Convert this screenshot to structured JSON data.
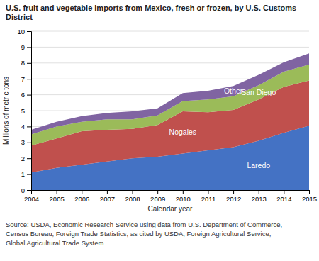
{
  "chart_data": {
    "type": "area",
    "stacked": true,
    "title": "U.S. fruit and vegetable imports from Mexico, fresh or frozen, by U.S. Customs District",
    "xlabel": "Calendar year",
    "ylabel": "Millions of metric tons",
    "x": [
      2004,
      2005,
      2006,
      2007,
      2008,
      2009,
      2010,
      2011,
      2012,
      2013,
      2014,
      2015
    ],
    "xlim": [
      2004,
      2015
    ],
    "xticks": [
      2004,
      2005,
      2006,
      2007,
      2008,
      2009,
      2010,
      2011,
      2012,
      2013,
      2014,
      2015
    ],
    "ylim": [
      0,
      10
    ],
    "yticks": [
      0,
      1,
      2,
      3,
      4,
      5,
      6,
      7,
      8,
      9,
      10
    ],
    "grid": true,
    "series": [
      {
        "name": "Laredo",
        "color": "#4472C4",
        "values": [
          1.1,
          1.4,
          1.6,
          1.8,
          2.0,
          2.1,
          2.3,
          2.5,
          2.7,
          3.1,
          3.6,
          4.05
        ]
      },
      {
        "name": "Nogales",
        "color": "#C0504D",
        "values": [
          1.7,
          1.85,
          2.1,
          2.0,
          1.85,
          2.0,
          2.65,
          2.4,
          2.35,
          2.6,
          2.9,
          2.85
        ]
      },
      {
        "name": "San Diego",
        "color": "#9BBB59",
        "values": [
          0.7,
          0.75,
          0.6,
          0.65,
          0.6,
          0.6,
          0.65,
          0.8,
          0.85,
          0.9,
          0.95,
          1.0
        ]
      },
      {
        "name": "Other",
        "color": "#8064A2",
        "values": [
          0.3,
          0.3,
          0.35,
          0.4,
          0.5,
          0.45,
          0.5,
          0.55,
          0.65,
          0.65,
          0.6,
          0.7
        ]
      }
    ],
    "annotations": [
      "Source:  USDA, Economic Research Service using data from U.S. Department of Commerce,",
      "Census Bureau, Foreign Trade Statistics, as cited by USDA, Foreign Agricultural Service,",
      "Global Agricultural Trade System."
    ]
  }
}
